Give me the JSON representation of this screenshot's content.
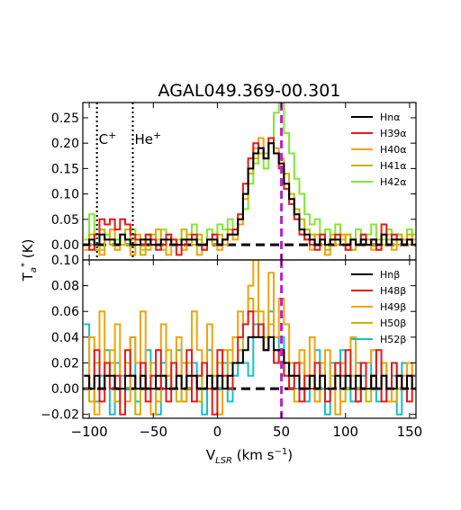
{
  "figure": {
    "title": "AGAL049.369-00.301",
    "xlabel": "V$_{LSR}$ (km s$^{-1}$)",
    "xlabel_parts": {
      "v": "V",
      "sub": "LSR",
      "unit_open": " (km s",
      "sup": "−1",
      "unit_close": ")"
    },
    "ylabel_parts": {
      "t": "T",
      "sub": "a",
      "sup": "*",
      "unit": " (K)"
    },
    "x_ticks": [
      "−100",
      "−50",
      "0",
      "50",
      "100",
      "150"
    ],
    "x_tick_values": [
      -100,
      -50,
      0,
      50,
      100,
      150
    ],
    "xlim": [
      -105,
      155
    ],
    "source_velocity": 50,
    "colors": {
      "Hn": "#000000",
      "H39": "#e41a1c",
      "H40": "#f0a30a",
      "H41": "#c8b400",
      "H42": "#7fe830",
      "H48": "#e41a1c",
      "H49": "#f0a30a",
      "H50": "#c8b400",
      "H52": "#17bec9",
      "vline": "#bb22cc",
      "zero": "#000000"
    }
  },
  "chart_data": [
    {
      "type": "line",
      "panel": "top",
      "ylim": [
        -0.03,
        0.28
      ],
      "y_ticks": [
        "0.25",
        "0.20",
        "0.15",
        "0.10",
        "0.05",
        "0.00",
        "−0.05"
      ],
      "y_tick_values": [
        0.25,
        0.2,
        0.15,
        0.1,
        0.05,
        0.0,
        -0.05
      ],
      "annotations": [
        {
          "label": "C",
          "sup": "+",
          "x": -94
        },
        {
          "label": "He",
          "sup": "+",
          "x": -66
        }
      ],
      "legend_placement": "top-right",
      "legend": [
        {
          "key": "Hn",
          "label": "Hnα"
        },
        {
          "key": "H39",
          "label": "H39α"
        },
        {
          "key": "H40",
          "label": "H40α"
        },
        {
          "key": "H41",
          "label": "H41α"
        },
        {
          "key": "H42",
          "label": "H42α"
        }
      ],
      "series": [
        {
          "key": "H42",
          "x0": -104,
          "dx": 4,
          "values": [
            0.01,
            0.06,
            0.02,
            -0.01,
            0.02,
            0.0,
            0.01,
            0.02,
            0.0,
            0.03,
            0.01,
            -0.01,
            0.02,
            0.0,
            0.01,
            0.03,
            0.02,
            0.0,
            0.01,
            -0.01,
            0.02,
            0.04,
            0.01,
            0.0,
            0.03,
            0.02,
            0.04,
            0.03,
            0.05,
            0.02,
            0.04,
            0.07,
            0.12,
            0.16,
            0.18,
            0.15,
            0.2,
            0.26,
            0.28,
            0.22,
            0.18,
            0.13,
            0.1,
            0.06,
            0.04,
            0.05,
            0.02,
            0.03,
            0.01,
            0.04,
            0.0,
            0.02,
            -0.01,
            0.03,
            0.01,
            0.02,
            0.04,
            0.0,
            0.01,
            0.03,
            0.0,
            0.02,
            0.01,
            0.03,
            0.02
          ]
        },
        {
          "key": "H41",
          "x0": -104,
          "dx": 4,
          "values": [
            0.0,
            0.02,
            -0.01,
            0.03,
            0.01,
            0.0,
            -0.01,
            0.02,
            0.03,
            0.01,
            0.0,
            -0.02,
            0.01,
            0.02,
            0.0,
            -0.01,
            0.02,
            0.01,
            0.0,
            0.03,
            0.01,
            0.0,
            0.02,
            -0.01,
            0.01,
            0.0,
            0.02,
            0.01,
            0.03,
            0.02,
            0.05,
            0.1,
            0.14,
            0.17,
            0.19,
            0.18,
            0.2,
            0.18,
            0.17,
            0.14,
            0.1,
            0.07,
            0.05,
            0.03,
            0.02,
            0.0,
            0.01,
            -0.01,
            0.02,
            0.0,
            0.01,
            0.02,
            -0.01,
            0.0,
            0.02,
            0.01,
            0.0,
            -0.01,
            0.02,
            0.01,
            0.0,
            0.02,
            0.01,
            0.0,
            0.01
          ]
        },
        {
          "key": "H40",
          "x0": -104,
          "dx": 4,
          "values": [
            -0.01,
            0.0,
            0.02,
            -0.02,
            0.01,
            0.03,
            -0.01,
            0.0,
            0.01,
            -0.02,
            0.02,
            0.0,
            -0.01,
            0.01,
            0.03,
            0.0,
            -0.02,
            0.01,
            0.0,
            -0.01,
            0.02,
            0.01,
            -0.02,
            0.0,
            0.01,
            0.02,
            -0.01,
            0.0,
            0.02,
            0.01,
            0.04,
            0.09,
            0.15,
            0.19,
            0.21,
            0.17,
            0.21,
            0.19,
            0.16,
            0.12,
            0.09,
            0.06,
            0.03,
            0.01,
            -0.01,
            0.02,
            0.0,
            -0.02,
            0.01,
            0.0,
            0.02,
            -0.01,
            0.01,
            0.0,
            0.02,
            0.0,
            -0.01,
            0.01,
            0.0,
            0.02,
            -0.01,
            0.0,
            0.01,
            0.02,
            0.0
          ]
        },
        {
          "key": "H39",
          "x0": -104,
          "dx": 4,
          "values": [
            0.0,
            -0.01,
            0.02,
            0.05,
            0.04,
            0.05,
            0.03,
            0.05,
            0.04,
            0.02,
            0.01,
            0.0,
            0.02,
            0.01,
            -0.01,
            0.0,
            0.02,
            0.01,
            -0.02,
            0.0,
            0.01,
            0.02,
            0.0,
            -0.01,
            0.01,
            0.02,
            0.0,
            0.01,
            0.02,
            0.03,
            0.06,
            0.12,
            0.17,
            0.2,
            0.19,
            0.17,
            0.21,
            0.18,
            0.15,
            0.11,
            0.08,
            0.05,
            0.02,
            0.01,
            0.0,
            -0.01,
            0.02,
            0.0,
            0.01,
            0.02,
            0.0,
            -0.01,
            0.01,
            0.0,
            0.02,
            0.0,
            0.01,
            -0.01,
            0.04,
            0.0,
            0.02,
            0.01,
            0.0,
            0.01,
            0.0
          ]
        },
        {
          "key": "Hn",
          "x0": -104,
          "dx": 4,
          "values": [
            0.0,
            0.01,
            0.0,
            0.02,
            0.01,
            0.01,
            0.0,
            0.02,
            0.01,
            0.0,
            0.0,
            0.01,
            0.01,
            0.0,
            0.0,
            0.01,
            0.01,
            0.0,
            0.0,
            0.01,
            0.01,
            0.01,
            0.0,
            0.0,
            0.01,
            0.01,
            0.0,
            0.01,
            0.02,
            0.02,
            0.05,
            0.1,
            0.15,
            0.18,
            0.19,
            0.17,
            0.2,
            0.18,
            0.16,
            0.12,
            0.09,
            0.06,
            0.03,
            0.02,
            0.01,
            0.0,
            0.01,
            0.0,
            0.01,
            0.01,
            0.0,
            0.0,
            0.01,
            0.0,
            0.01,
            0.0,
            0.01,
            0.0,
            0.02,
            0.0,
            0.01,
            0.01,
            0.0,
            0.01,
            0.0
          ]
        }
      ]
    },
    {
      "type": "line",
      "panel": "bottom",
      "ylim": [
        -0.023,
        0.1
      ],
      "y_ticks": [
        "0.10",
        "0.08",
        "0.06",
        "0.04",
        "0.02",
        "0.00",
        "−0.02"
      ],
      "y_tick_values": [
        0.1,
        0.08,
        0.06,
        0.04,
        0.02,
        0.0,
        -0.02
      ],
      "legend_placement": "top-right",
      "legend": [
        {
          "key": "Hn",
          "label": "Hnβ"
        },
        {
          "key": "H48",
          "label": "H48β"
        },
        {
          "key": "H49",
          "label": "H49β"
        },
        {
          "key": "H50",
          "label": "H50β"
        },
        {
          "key": "H52",
          "label": "H52β"
        }
      ],
      "series": [
        {
          "key": "H52",
          "x0": -104,
          "dx": 4,
          "values": [
            0.05,
            0.0,
            -0.01,
            0.01,
            0.03,
            -0.02,
            0.02,
            0.01,
            0.0,
            0.04,
            -0.01,
            0.01,
            0.03,
            0.0,
            -0.02,
            0.02,
            0.01,
            0.0,
            0.03,
            -0.01,
            0.01,
            0.02,
            0.0,
            -0.02,
            0.03,
            0.01,
            0.0,
            0.02,
            -0.01,
            0.01,
            0.03,
            0.02,
            0.01,
            0.05,
            0.04,
            0.03,
            0.06,
            0.03,
            0.04,
            0.02,
            0.01,
            0.0,
            0.02,
            -0.01,
            0.01,
            0.03,
            0.0,
            -0.02,
            0.02,
            0.01,
            0.03,
            0.0,
            -0.01,
            0.02,
            0.01,
            0.0,
            0.03,
            -0.01,
            0.02,
            0.0,
            0.01,
            -0.02,
            0.02,
            0.01,
            0.0
          ]
        },
        {
          "key": "H50",
          "x0": -104,
          "dx": 4,
          "values": [
            0.01,
            -0.01,
            0.02,
            0.0,
            0.01,
            0.03,
            -0.01,
            0.0,
            0.02,
            0.01,
            -0.02,
            0.01,
            0.0,
            0.02,
            -0.01,
            0.01,
            0.03,
            0.0,
            -0.01,
            0.02,
            0.0,
            0.01,
            -0.01,
            0.02,
            0.0,
            0.01,
            0.02,
            0.0,
            0.03,
            0.02,
            0.03,
            0.05,
            0.07,
            0.06,
            0.05,
            0.04,
            0.05,
            0.03,
            0.02,
            0.01,
            0.0,
            -0.01,
            0.02,
            0.0,
            0.01,
            -0.01,
            0.02,
            0.0,
            0.01,
            0.02,
            -0.01,
            0.0,
            0.01,
            0.0,
            0.02,
            -0.01,
            0.01,
            0.0,
            0.02,
            0.0,
            -0.01,
            0.01,
            0.0,
            0.02,
            0.01
          ]
        },
        {
          "key": "H49",
          "x0": -104,
          "dx": 4,
          "values": [
            0.0,
            0.04,
            -0.02,
            0.06,
            0.01,
            0.02,
            0.05,
            0.0,
            -0.01,
            0.04,
            0.02,
            0.06,
            0.0,
            -0.02,
            0.03,
            0.05,
            0.01,
            0.0,
            0.04,
            -0.01,
            0.02,
            0.06,
            0.03,
            0.0,
            0.05,
            0.01,
            -0.02,
            0.03,
            0.02,
            0.04,
            0.06,
            0.05,
            0.08,
            0.1,
            0.06,
            0.03,
            0.09,
            0.04,
            0.07,
            0.05,
            0.02,
            0.01,
            0.03,
            0.0,
            0.04,
            -0.01,
            0.02,
            0.03,
            0.0,
            -0.02,
            0.02,
            0.01,
            0.04,
            -0.01,
            0.0,
            0.02,
            0.03,
            0.0,
            0.01,
            -0.01,
            0.02,
            0.0,
            0.01,
            0.02,
            0.0
          ]
        },
        {
          "key": "H48",
          "x0": -104,
          "dx": 4,
          "values": [
            0.01,
            0.0,
            0.03,
            -0.01,
            0.02,
            0.0,
            0.01,
            -0.02,
            0.03,
            0.01,
            0.0,
            0.02,
            -0.01,
            0.01,
            0.03,
            0.0,
            -0.01,
            0.02,
            0.01,
            0.0,
            0.03,
            -0.01,
            0.01,
            0.02,
            0.0,
            -0.02,
            0.03,
            0.01,
            0.0,
            0.02,
            0.04,
            0.05,
            0.06,
            0.04,
            0.05,
            0.03,
            0.04,
            0.02,
            0.03,
            0.01,
            0.0,
            0.02,
            -0.01,
            0.01,
            0.0,
            0.02,
            0.01,
            -0.01,
            0.0,
            0.02,
            0.01,
            0.03,
            0.0,
            -0.01,
            0.02,
            0.0,
            0.01,
            0.03,
            -0.01,
            0.0,
            0.02,
            0.01,
            0.0,
            -0.01,
            0.01
          ]
        },
        {
          "key": "Hn",
          "x0": -104,
          "dx": 4,
          "values": [
            0.01,
            0.0,
            0.01,
            0.0,
            0.01,
            0.01,
            0.0,
            0.0,
            0.01,
            0.01,
            0.0,
            0.01,
            0.0,
            0.0,
            0.01,
            0.01,
            0.0,
            0.0,
            0.01,
            0.0,
            0.01,
            0.01,
            0.0,
            0.0,
            0.01,
            0.0,
            0.01,
            0.0,
            0.01,
            0.02,
            0.02,
            0.03,
            0.04,
            0.04,
            0.04,
            0.03,
            0.04,
            0.03,
            0.03,
            0.02,
            0.01,
            0.01,
            0.0,
            0.0,
            0.01,
            0.0,
            0.01,
            0.0,
            0.0,
            0.01,
            0.0,
            0.01,
            0.0,
            0.01,
            0.0,
            0.0,
            0.01,
            0.0,
            0.01,
            0.0,
            0.0,
            0.01,
            0.0,
            0.01,
            0.0
          ]
        }
      ]
    }
  ]
}
